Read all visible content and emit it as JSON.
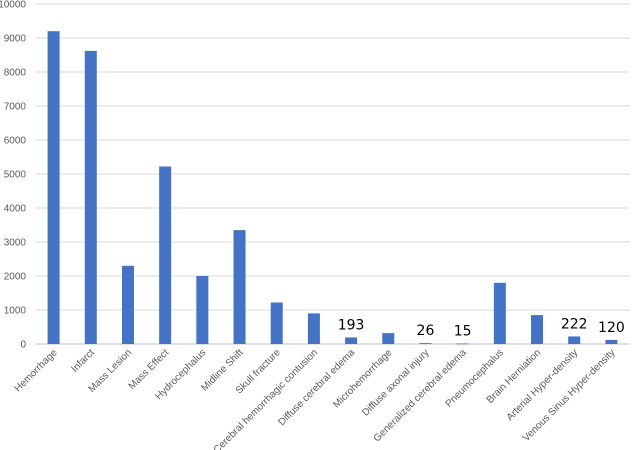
{
  "chart_data": {
    "type": "bar",
    "categories": [
      "Hemorrhage",
      "Infarct",
      "Mass Lesion",
      "Mass Effect",
      "Hydrocephalus",
      "Midline Shift",
      "Skull fracture",
      "Cerebral hemorrhagic contusion",
      "Diffuse cerebral edema",
      "Microhemorrhage",
      "Diffuse axonal injury",
      "Generalized cerebral edema",
      "Pneumocephalus",
      "Brain Herniation",
      "Arterial Hyper-density",
      "Venous Sinus Hyper-density"
    ],
    "values": [
      9200,
      8620,
      2300,
      5220,
      2000,
      3350,
      1220,
      900,
      193,
      320,
      26,
      15,
      1800,
      850,
      222,
      120
    ],
    "data_labels": [
      "",
      "",
      "",
      "",
      "",
      "",
      "",
      "",
      "193",
      "",
      "26",
      "15",
      "",
      "",
      "222",
      "120"
    ],
    "title": "",
    "xlabel": "",
    "ylabel": "",
    "ylim": [
      0,
      10000
    ],
    "yticks": [
      "0",
      "1000",
      "2000",
      "3000",
      "4000",
      "5000",
      "6000",
      "7000",
      "8000",
      "9000",
      "10000"
    ],
    "grid": true,
    "legend": "none",
    "bar_color": "#4472c4"
  }
}
